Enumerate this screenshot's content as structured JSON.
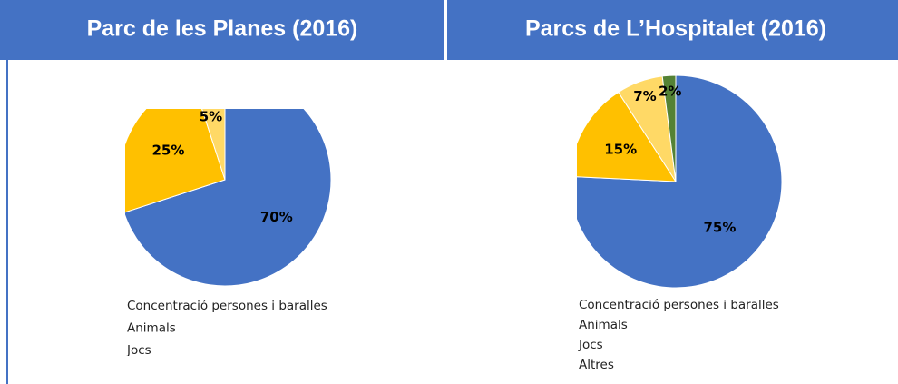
{
  "chart_data": [
    {
      "type": "pie",
      "title": "Parc de les Planes (2016)",
      "categories": [
        "Concentració persones i baralles",
        "Animals",
        "Jocs"
      ],
      "values": [
        70,
        25,
        5
      ],
      "value_labels": [
        "70%",
        "25%",
        "5%"
      ],
      "colors": [
        "#4472c4",
        "#ffc000",
        "#ffd966"
      ]
    },
    {
      "type": "pie",
      "title": "Parcs de L’Hospitalet (2016)",
      "categories": [
        "Concentració persones i baralles",
        "Animals",
        "Jocs",
        "Altres"
      ],
      "values": [
        75,
        15,
        7,
        2
      ],
      "value_labels": [
        "75%",
        "15%",
        "7%",
        "2%"
      ],
      "colors": [
        "#4472c4",
        "#ffc000",
        "#ffd966",
        "#548235"
      ]
    }
  ]
}
